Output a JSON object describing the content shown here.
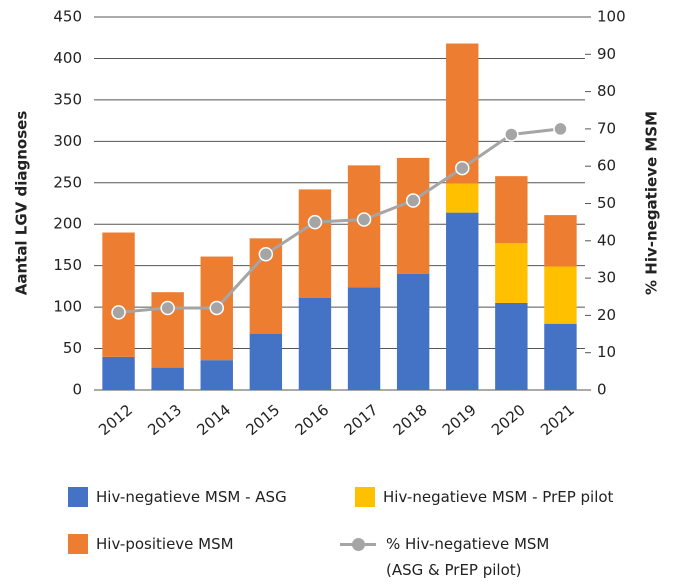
{
  "chart_data": {
    "type": "bar",
    "stacked": true,
    "ylabel": "Aantal LGV diagnoses",
    "y2label": "% Hiv-negatieve MSM",
    "categories": [
      "2012",
      "2013",
      "2014",
      "2015",
      "2016",
      "2017",
      "2018",
      "2019",
      "2020",
      "2021"
    ],
    "series": [
      {
        "name": "Hiv-negatieve MSM - ASG",
        "color": "#4472c4",
        "values": [
          40,
          27,
          36,
          68,
          111,
          124,
          140,
          214,
          105,
          80
        ]
      },
      {
        "name": "Hiv-negatieve MSM - PrEP pilot",
        "color": "#ffc000",
        "values": [
          0,
          0,
          0,
          0,
          0,
          0,
          0,
          35,
          72,
          69
        ]
      },
      {
        "name": "Hiv-positieve MSM",
        "color": "#ed7d31",
        "values": [
          150,
          91,
          125,
          115,
          131,
          147,
          140,
          169,
          81,
          62
        ]
      },
      {
        "name": "% Hiv-negatieve MSM (ASG & PrEP pilot)",
        "color": "#a5a5a5",
        "type": "line",
        "axis": "y2",
        "values": [
          20.8,
          22.0,
          22.0,
          36.4,
          45.0,
          45.7,
          50.8,
          59.5,
          68.5,
          70.0
        ]
      }
    ],
    "ylim": [
      0,
      450
    ],
    "yticks": [
      0,
      50,
      100,
      150,
      200,
      250,
      300,
      350,
      400,
      450
    ],
    "y2lim": [
      0,
      100
    ],
    "y2ticks": [
      0,
      10,
      20,
      30,
      40,
      50,
      60,
      70,
      80,
      90,
      100
    ],
    "grid": true
  }
}
